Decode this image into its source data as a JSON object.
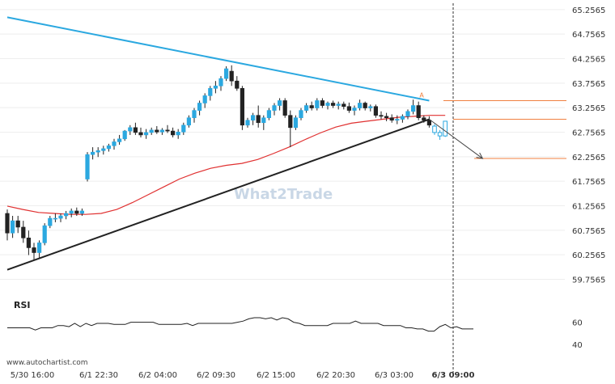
{
  "chart_data": {
    "type": "candlestick",
    "title": "",
    "attribution": "www.autochartist.com",
    "watermark": "What2Trade",
    "x_ticks": [
      "5/30 16:00",
      "6/1 22:30",
      "6/2 04:00",
      "6/2 09:30",
      "6/2 15:00",
      "6/2 20:30",
      "6/3 03:00",
      "6/3 09:00"
    ],
    "y_ticks": [
      "65.2565",
      "64.7565",
      "64.2565",
      "63.7565",
      "63.2565",
      "62.7565",
      "62.2565",
      "61.7565",
      "61.2565",
      "60.7565",
      "60.2565",
      "59.7565"
    ],
    "ylim": [
      59.55,
      65.32
    ],
    "candles": [
      [
        61.1,
        61.18,
        60.55,
        60.7
      ],
      [
        60.7,
        61.05,
        60.6,
        60.95
      ],
      [
        60.95,
        61.05,
        60.7,
        60.82
      ],
      [
        60.82,
        60.95,
        60.5,
        60.6
      ],
      [
        60.6,
        60.75,
        60.25,
        60.4
      ],
      [
        60.4,
        60.5,
        60.15,
        60.3
      ],
      [
        60.3,
        60.55,
        60.2,
        60.5
      ],
      [
        60.5,
        60.9,
        60.45,
        60.85
      ],
      [
        60.85,
        61.05,
        60.8,
        61.0
      ],
      [
        61.0,
        61.1,
        60.92,
        61.0
      ],
      [
        61.0,
        61.1,
        60.92,
        61.05
      ],
      [
        61.05,
        61.15,
        60.98,
        61.1
      ],
      [
        61.1,
        61.2,
        61.02,
        61.15
      ],
      [
        61.15,
        61.22,
        61.05,
        61.1
      ],
      [
        61.1,
        61.2,
        61.05,
        61.15
      ],
      [
        61.8,
        62.35,
        61.75,
        62.3
      ],
      [
        62.3,
        62.45,
        62.2,
        62.35
      ],
      [
        62.35,
        62.45,
        62.25,
        62.38
      ],
      [
        62.38,
        62.48,
        62.3,
        62.42
      ],
      [
        62.42,
        62.52,
        62.36,
        62.48
      ],
      [
        62.48,
        62.62,
        62.4,
        62.56
      ],
      [
        62.56,
        62.7,
        62.5,
        62.62
      ],
      [
        62.62,
        62.8,
        62.58,
        62.78
      ],
      [
        62.78,
        62.9,
        62.7,
        62.85
      ],
      [
        62.85,
        62.95,
        62.7,
        62.75
      ],
      [
        62.75,
        62.85,
        62.65,
        62.7
      ],
      [
        62.7,
        62.82,
        62.62,
        62.75
      ],
      [
        62.75,
        62.85,
        62.7,
        62.8
      ],
      [
        62.8,
        62.88,
        62.72,
        62.76
      ],
      [
        62.76,
        62.84,
        62.7,
        62.8
      ],
      [
        62.8,
        62.9,
        62.74,
        62.78
      ],
      [
        62.78,
        62.85,
        62.65,
        62.7
      ],
      [
        62.7,
        62.82,
        62.62,
        62.76
      ],
      [
        62.76,
        62.95,
        62.7,
        62.9
      ],
      [
        62.9,
        63.1,
        62.85,
        63.05
      ],
      [
        63.05,
        63.25,
        62.95,
        63.2
      ],
      [
        63.2,
        63.4,
        63.1,
        63.35
      ],
      [
        63.35,
        63.55,
        63.25,
        63.5
      ],
      [
        63.5,
        63.7,
        63.4,
        63.65
      ],
      [
        63.65,
        63.8,
        63.55,
        63.7
      ],
      [
        63.7,
        63.9,
        63.6,
        63.85
      ],
      [
        63.85,
        64.1,
        63.8,
        64.05
      ],
      [
        64.0,
        64.12,
        63.7,
        63.8
      ],
      [
        63.8,
        63.9,
        63.6,
        63.65
      ],
      [
        63.65,
        63.7,
        62.8,
        62.9
      ],
      [
        62.9,
        63.05,
        62.85,
        63.0
      ],
      [
        63.0,
        63.15,
        62.9,
        63.1
      ],
      [
        63.1,
        63.3,
        62.85,
        62.95
      ],
      [
        62.95,
        63.1,
        62.8,
        63.05
      ],
      [
        63.05,
        63.25,
        63.0,
        63.2
      ],
      [
        63.2,
        63.35,
        63.1,
        63.3
      ],
      [
        63.3,
        63.45,
        63.2,
        63.4
      ],
      [
        63.4,
        63.45,
        63.05,
        63.1
      ],
      [
        63.1,
        63.2,
        62.45,
        62.85
      ],
      [
        62.85,
        63.1,
        62.8,
        63.05
      ],
      [
        63.05,
        63.25,
        63.0,
        63.2
      ],
      [
        63.2,
        63.35,
        63.15,
        63.3
      ],
      [
        63.3,
        63.38,
        63.2,
        63.25
      ],
      [
        63.25,
        63.45,
        63.2,
        63.4
      ],
      [
        63.4,
        63.45,
        63.25,
        63.3
      ],
      [
        63.3,
        63.38,
        63.22,
        63.35
      ],
      [
        63.35,
        63.4,
        63.25,
        63.3
      ],
      [
        63.3,
        63.38,
        63.22,
        63.33
      ],
      [
        63.33,
        63.38,
        63.22,
        63.28
      ],
      [
        63.28,
        63.36,
        63.15,
        63.2
      ],
      [
        63.2,
        63.3,
        63.1,
        63.25
      ],
      [
        63.25,
        63.42,
        63.2,
        63.35
      ],
      [
        63.35,
        63.38,
        63.2,
        63.25
      ],
      [
        63.25,
        63.32,
        63.18,
        63.28
      ],
      [
        63.28,
        63.32,
        63.05,
        63.1
      ],
      [
        63.1,
        63.18,
        63.02,
        63.08
      ],
      [
        63.08,
        63.15,
        62.98,
        63.05
      ],
      [
        63.05,
        63.12,
        62.95,
        63.0
      ],
      [
        63.0,
        63.1,
        62.92,
        63.02
      ],
      [
        63.02,
        63.12,
        62.95,
        63.08
      ],
      [
        63.08,
        63.22,
        63.02,
        63.18
      ],
      [
        63.18,
        63.42,
        63.12,
        63.3
      ],
      [
        63.3,
        63.38,
        63.0,
        63.05
      ],
      [
        63.05,
        63.1,
        62.95,
        63.0
      ],
      [
        63.0,
        63.08,
        62.85,
        62.9
      ],
      [
        62.88,
        62.92,
        62.7,
        62.75
      ],
      [
        62.75,
        62.8,
        62.6,
        62.68
      ],
      [
        62.68,
        62.98,
        62.66,
        62.98
      ]
    ],
    "breakout_index": 79,
    "moving_average": [
      61.25,
      61.18,
      61.12,
      61.1,
      61.08,
      61.08,
      61.1,
      61.18,
      61.32,
      61.48,
      61.64,
      61.8,
      61.92,
      62.02,
      62.08,
      62.12,
      62.2,
      62.32,
      62.45,
      62.6,
      62.74,
      62.86,
      62.94,
      62.98,
      63.02,
      63.06,
      63.08,
      63.1,
      63.1
    ],
    "triangle_upper": [
      [
        0,
        65.1
      ],
      [
        79,
        63.4
      ]
    ],
    "triangle_lower": [
      [
        0,
        59.95
      ],
      [
        79,
        63.02
      ]
    ],
    "forecast_arrow": [
      [
        79,
        63.02
      ],
      [
        89,
        62.22
      ]
    ],
    "forecast_levels": [
      63.4,
      63.02,
      62.22
    ],
    "annotation": "A",
    "rsi": {
      "label": "RSI",
      "ticks": [
        "60",
        "40"
      ],
      "ylim": [
        30,
        72
      ],
      "values": [
        55,
        55,
        55,
        55,
        55,
        53,
        55,
        55,
        55,
        57,
        57,
        56,
        59,
        56,
        59,
        57,
        59,
        59,
        59,
        58,
        58,
        58,
        60,
        60,
        60,
        60,
        60,
        58,
        58,
        58,
        58,
        58,
        59,
        57,
        59,
        59,
        59,
        59,
        59,
        59,
        59,
        60,
        61,
        63,
        64,
        64,
        63,
        64,
        62,
        64,
        63,
        60,
        59,
        57,
        57,
        57,
        57,
        57,
        59,
        59,
        59,
        59,
        61,
        59,
        59,
        59,
        59,
        57,
        57,
        57,
        57,
        55,
        55,
        54,
        54,
        52,
        52,
        56,
        58,
        55,
        56,
        54,
        54,
        54
      ]
    }
  }
}
